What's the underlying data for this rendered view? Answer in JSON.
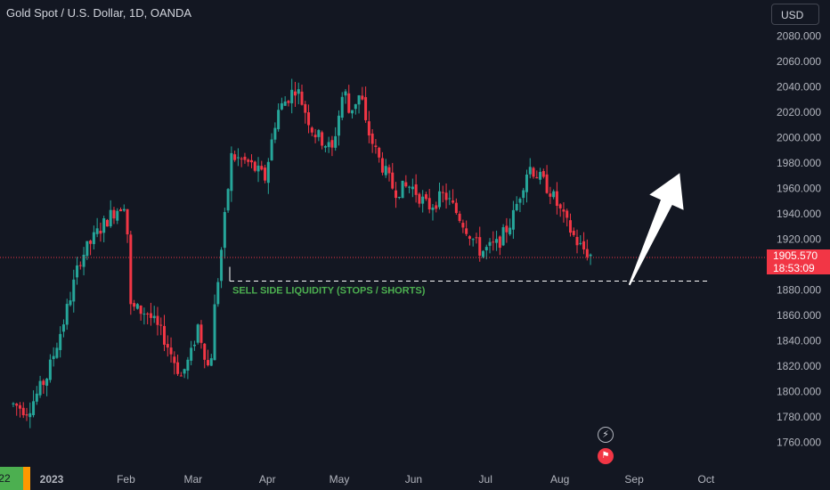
{
  "header": {
    "title": "Gold Spot / U.S. Dollar, 1D, OANDA",
    "currency": "USD"
  },
  "price_badge": {
    "price": "1905.570",
    "countdown": "18:53:09"
  },
  "annotation": {
    "text": "SELL SIDE LIQUIDITY (STOPS / SHORTS)",
    "level": 1887
  },
  "time_axis": {
    "prev_year_label": "'22",
    "labels": [
      "2023",
      "Feb",
      "Mar",
      "Apr",
      "May",
      "Jun",
      "Jul",
      "Aug",
      "Sep",
      "Oct"
    ]
  },
  "events": {
    "flash_icon": "flash-icon",
    "flag_icon": "us-flag-icon"
  },
  "colors": {
    "background": "#131722",
    "up": "#26a69a",
    "down": "#f23645",
    "annotation": "#4caf50",
    "grid_text": "#b2b5be",
    "arrow": "#ffffff"
  },
  "chart_data": {
    "type": "candlestick",
    "title": "Gold Spot / U.S. Dollar, 1D, OANDA",
    "ylim": [
      1745,
      2090
    ],
    "y_ticks": [
      1760,
      1780,
      1800,
      1820,
      1840,
      1860,
      1880,
      1900,
      1920,
      1940,
      1960,
      1980,
      2000,
      2020,
      2040,
      2060,
      2080
    ],
    "y_tick_labels": [
      "1760.000",
      "1780.000",
      "1800.000",
      "1820.000",
      "1840.000",
      "1860.000",
      "1880.000",
      "1900.000",
      "1920.000",
      "1940.000",
      "1960.000",
      "1980.000",
      "2000.000",
      "2020.000",
      "2040.000",
      "2060.000",
      "2080.000"
    ],
    "last_price": 1905.57,
    "close_path": [
      [
        "2022-12-16",
        1790
      ],
      [
        "2022-12-22",
        1785
      ],
      [
        "2022-12-30",
        1812
      ],
      [
        "2023-01-06",
        1855
      ],
      [
        "2023-01-13",
        1905
      ],
      [
        "2023-01-20",
        1925
      ],
      [
        "2023-01-26",
        1940
      ],
      [
        "2023-02-01",
        1950
      ],
      [
        "2023-02-03",
        1866
      ],
      [
        "2023-02-10",
        1862
      ],
      [
        "2023-02-17",
        1842
      ],
      [
        "2023-02-24",
        1812
      ],
      [
        "2023-02-28",
        1828
      ],
      [
        "2023-03-03",
        1852
      ],
      [
        "2023-03-08",
        1814
      ],
      [
        "2023-03-10",
        1866
      ],
      [
        "2023-03-13",
        1915
      ],
      [
        "2023-03-17",
        1985
      ],
      [
        "2023-03-24",
        1980
      ],
      [
        "2023-03-31",
        1968
      ],
      [
        "2023-04-05",
        2020
      ],
      [
        "2023-04-13",
        2040
      ],
      [
        "2023-04-20",
        2005
      ],
      [
        "2023-04-28",
        1990
      ],
      [
        "2023-05-03",
        2040
      ],
      [
        "2023-05-05",
        2020
      ],
      [
        "2023-05-10",
        2035
      ],
      [
        "2023-05-12",
        2010
      ],
      [
        "2023-05-17",
        1985
      ],
      [
        "2023-05-24",
        1958
      ],
      [
        "2023-05-31",
        1962
      ],
      [
        "2023-06-07",
        1945
      ],
      [
        "2023-06-14",
        1955
      ],
      [
        "2023-06-21",
        1935
      ],
      [
        "2023-06-29",
        1910
      ],
      [
        "2023-07-06",
        1916
      ],
      [
        "2023-07-12",
        1935
      ],
      [
        "2023-07-19",
        1978
      ],
      [
        "2023-07-25",
        1965
      ],
      [
        "2023-07-28",
        1958
      ],
      [
        "2023-08-03",
        1935
      ],
      [
        "2023-08-09",
        1915
      ],
      [
        "2023-08-15",
        1905.57
      ]
    ],
    "projection_arrow": {
      "from": [
        "2023-08-30",
        1884
      ],
      "to": [
        "2023-09-20",
        1972
      ]
    }
  }
}
